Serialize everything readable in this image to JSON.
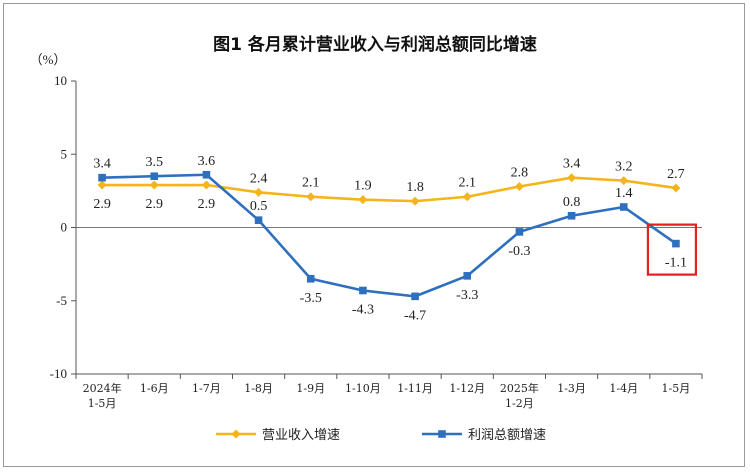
{
  "chart_data": {
    "type": "line",
    "title": "图1  各月累计营业收入与利润总额同比增速",
    "yunit": "（%）",
    "ylim": [
      -10,
      10
    ],
    "yticks": [
      10,
      5,
      0,
      -5,
      -10
    ],
    "categories": [
      [
        "2024年",
        "1-5月"
      ],
      [
        "1-6月"
      ],
      [
        "1-7月"
      ],
      [
        "1-8月"
      ],
      [
        "1-9月"
      ],
      [
        "1-10月"
      ],
      [
        "1-11月"
      ],
      [
        "1-12月"
      ],
      [
        "2025年",
        "1-2月"
      ],
      [
        "1-3月"
      ],
      [
        "1-4月"
      ],
      [
        "1-5月"
      ]
    ],
    "series": [
      {
        "name": "营业收入增速",
        "color": "#f5b41a",
        "marker": "diamond",
        "values": [
          2.9,
          2.9,
          2.9,
          2.4,
          2.1,
          1.9,
          1.8,
          2.1,
          2.8,
          3.4,
          3.2,
          2.7
        ],
        "labels": [
          "2.9",
          "2.9",
          "2.9",
          "2.4",
          "2.1",
          "1.9",
          "1.8",
          "2.1",
          "2.8",
          "3.4",
          "3.2",
          "2.7"
        ]
      },
      {
        "name": "利润总额增速",
        "color": "#2f6fbf",
        "marker": "square",
        "values": [
          3.4,
          3.5,
          3.6,
          0.5,
          -3.5,
          -4.3,
          -4.7,
          -3.3,
          -0.3,
          0.8,
          1.4,
          -1.1
        ],
        "labels": [
          "3.4",
          "3.5",
          "3.6",
          "0.5",
          "-3.5",
          "-4.3",
          "-4.7",
          "-3.3",
          "-0.3",
          "0.8",
          "1.4",
          "-1.1"
        ]
      }
    ],
    "highlight": {
      "series": 1,
      "index": 11,
      "color": "#e02020"
    },
    "legend": "bottom",
    "grid": false
  }
}
